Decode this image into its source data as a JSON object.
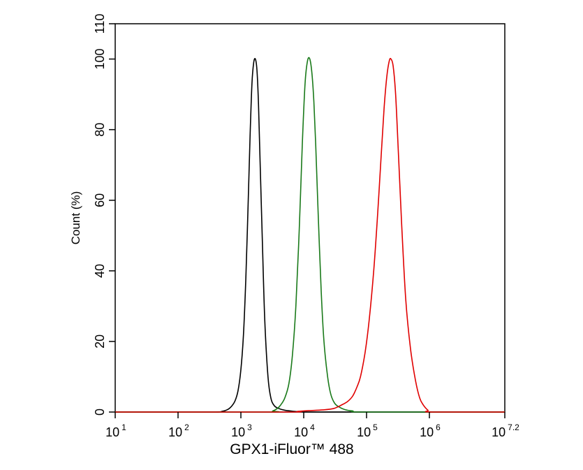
{
  "chart_data": {
    "type": "line",
    "title": "",
    "xlabel": "GPX1-iFluor™ 488",
    "ylabel": "Count  (%)",
    "x_scale": "log",
    "xlim": [
      10,
      15848931.9
    ],
    "ylim": [
      0,
      110
    ],
    "grid": false,
    "legend": "none",
    "x_ticks": [
      {
        "base": "10",
        "exp": "1",
        "value": 10
      },
      {
        "base": "10",
        "exp": "2",
        "value": 100
      },
      {
        "base": "10",
        "exp": "3",
        "value": 1000
      },
      {
        "base": "10",
        "exp": "4",
        "value": 10000
      },
      {
        "base": "10",
        "exp": "5",
        "value": 100000
      },
      {
        "base": "10",
        "exp": "6",
        "value": 1000000
      },
      {
        "base": "10",
        "exp": "7.2",
        "value": 15848931.9
      }
    ],
    "y_ticks": [
      {
        "label": "0",
        "value": 0
      },
      {
        "label": "20",
        "value": 20
      },
      {
        "label": "40",
        "value": 40
      },
      {
        "label": "60",
        "value": 60
      },
      {
        "label": "80",
        "value": 80
      },
      {
        "label": "100",
        "value": 100
      },
      {
        "label": "110",
        "value": 110
      }
    ],
    "series": [
      {
        "color": "#000000",
        "x": [
          10,
          100,
          400,
          500,
          560,
          630,
          700,
          800,
          900,
          1000,
          1100,
          1200,
          1300,
          1400,
          1500,
          1600,
          1700,
          1800,
          1900,
          2000,
          2200,
          2400,
          2700,
          3000,
          3400,
          4000,
          5000,
          7000,
          10000,
          20000,
          15848931.9
        ],
        "y": [
          0,
          0,
          0,
          0.2,
          0.4,
          0.8,
          1.5,
          3,
          6,
          12,
          22,
          38,
          58,
          78,
          93,
          99,
          100,
          97,
          88,
          74,
          48,
          26,
          10,
          4,
          1.8,
          1,
          0.5,
          0.2,
          0,
          0,
          0
        ]
      },
      {
        "color": "#1a7a1a",
        "x": [
          10,
          2500,
          3200,
          3800,
          4300,
          5000,
          5800,
          6600,
          7500,
          8500,
          9500,
          10500,
          11500,
          12500,
          13500,
          14500,
          15500,
          17000,
          19000,
          21000,
          24000,
          27000,
          31000,
          36000,
          45000,
          60000,
          100000,
          15848931.9
        ],
        "y": [
          0,
          0,
          0.3,
          1,
          2,
          4,
          8,
          16,
          30,
          52,
          76,
          93,
          99.5,
          100,
          96,
          88,
          76,
          56,
          34,
          20,
          10,
          5,
          2.5,
          1.5,
          0.7,
          0.3,
          0,
          0
        ]
      },
      {
        "color": "#e00000",
        "x": [
          10,
          5000,
          8000,
          12000,
          20000,
          30000,
          40000,
          50000,
          60000,
          70000,
          80000,
          95000,
          110000,
          130000,
          150000,
          170000,
          190000,
          210000,
          230000,
          245000,
          265000,
          290000,
          320000,
          360000,
          420000,
          500000,
          600000,
          700000,
          800000,
          950000,
          1100000,
          15848931.9
        ],
        "y": [
          0,
          0,
          0.2,
          0.4,
          0.6,
          1,
          2,
          3,
          4.5,
          7,
          10,
          17,
          26,
          40,
          56,
          72,
          86,
          95,
          99.5,
          100,
          98,
          90,
          74,
          54,
          32,
          18,
          9,
          4,
          2,
          0.5,
          0,
          0
        ]
      }
    ]
  }
}
